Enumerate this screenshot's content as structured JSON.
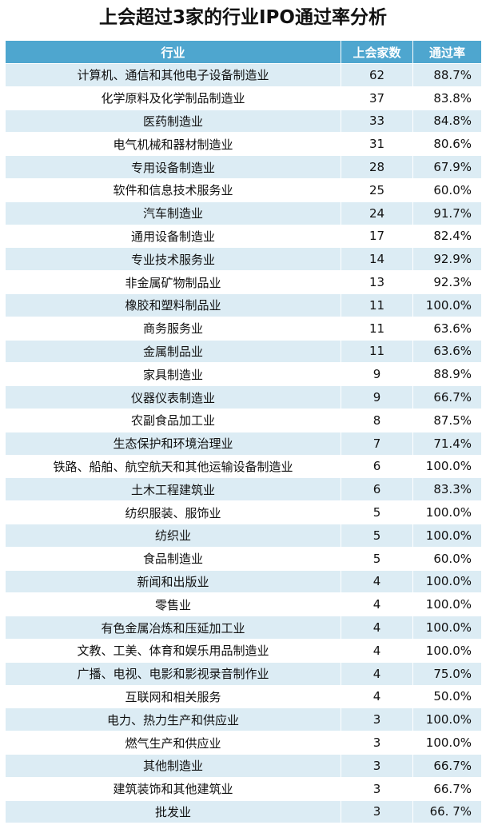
{
  "title": "上会超过3家的行业IPO通过率分析",
  "table": {
    "header": [
      "行业",
      "上会家数",
      "通过率"
    ],
    "rows": [
      [
        "计算机、通信和其他电子设备制造业",
        62,
        "88.7%"
      ],
      [
        "化学原料及化学制品制造业",
        37,
        "83.8%"
      ],
      [
        "医药制造业",
        33,
        "84.8%"
      ],
      [
        "电气机械和器材制造业",
        31,
        "80.6%"
      ],
      [
        "专用设备制造业",
        28,
        "67.9%"
      ],
      [
        "软件和信息技术服务业",
        25,
        "60.0%"
      ],
      [
        "汽车制造业",
        24,
        "91.7%"
      ],
      [
        "通用设备制造业",
        17,
        "82.4%"
      ],
      [
        "专业技术服务业",
        14,
        "92.9%"
      ],
      [
        "非金属矿物制品业",
        13,
        "92.3%"
      ],
      [
        "橡胶和塑料制品业",
        11,
        "100.0%"
      ],
      [
        "商务服务业",
        11,
        "63.6%"
      ],
      [
        "金属制品业",
        11,
        "63.6%"
      ],
      [
        "家具制造业",
        9,
        "88.9%"
      ],
      [
        "仪器仪表制造业",
        9,
        "66.7%"
      ],
      [
        "农副食品加工业",
        8,
        "87.5%"
      ],
      [
        "生态保护和环境治理业",
        7,
        "71.4%"
      ],
      [
        "铁路、船舶、航空航天和其他运输设备制造业",
        6,
        "100.0%"
      ],
      [
        "土木工程建筑业",
        6,
        "83.3%"
      ],
      [
        "纺织服装、服饰业",
        5,
        "100.0%"
      ],
      [
        "纺织业",
        5,
        "100.0%"
      ],
      [
        "食品制造业",
        5,
        "60.0%"
      ],
      [
        "新闻和出版业",
        4,
        "100.0%"
      ],
      [
        "零售业",
        4,
        "100.0%"
      ],
      [
        "有色金属冶炼和压延加工业",
        4,
        "100.0%"
      ],
      [
        "文教、工美、体育和娱乐用品制造业",
        4,
        "100.0%"
      ],
      [
        "广播、电视、电影和影视录音制作业",
        4,
        "75.0%"
      ],
      [
        "互联网和相关服务",
        4,
        "50.0%"
      ],
      [
        "电力、热力生产和供应业",
        3,
        "100.0%"
      ],
      [
        "燃气生产和供应业",
        3,
        "100.0%"
      ],
      [
        "其他制造业",
        3,
        "66.7%"
      ],
      [
        "建筑装饰和其他建筑业",
        3,
        "66.7%"
      ],
      [
        "批发业",
        3,
        "66. 7%"
      ]
    ]
  }
}
